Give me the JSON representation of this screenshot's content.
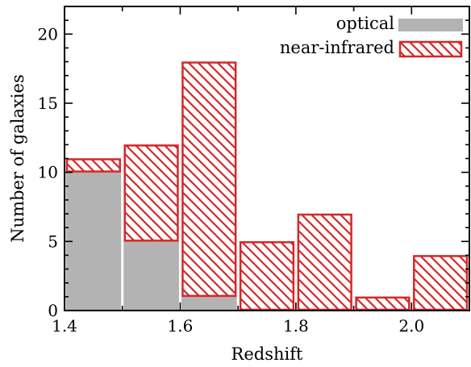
{
  "chart_data": {
    "type": "bar",
    "stacked": "overlaid",
    "xlabel": "Redshift",
    "ylabel": "Number of galaxies",
    "xlim": [
      1.4,
      2.1
    ],
    "ylim": [
      0,
      22
    ],
    "bin_width": 0.1,
    "x_ticks": [
      1.4,
      1.6,
      1.8,
      2.0
    ],
    "x_minor_ticks": [
      1.5,
      1.7,
      1.9,
      2.1
    ],
    "y_ticks": [
      0,
      5,
      10,
      15,
      20
    ],
    "x_tick_labels": [
      "1.4",
      "1.6",
      "1.8",
      "2.0"
    ],
    "y_tick_labels": [
      "0",
      "5",
      "10",
      "15",
      "20"
    ],
    "bins": [
      {
        "start": 1.4,
        "end": 1.5
      },
      {
        "start": 1.5,
        "end": 1.6
      },
      {
        "start": 1.6,
        "end": 1.7
      },
      {
        "start": 1.7,
        "end": 1.8
      },
      {
        "start": 1.8,
        "end": 1.9
      },
      {
        "start": 1.9,
        "end": 2.0
      },
      {
        "start": 2.0,
        "end": 2.1
      }
    ],
    "series": [
      {
        "name": "optical",
        "style": "solid",
        "color": "#b3b3b3",
        "values": [
          10,
          5,
          1,
          0,
          0,
          0,
          0
        ]
      },
      {
        "name": "near-infrared",
        "style": "hatched",
        "color": "#d62728",
        "values": [
          11,
          12,
          18,
          5,
          7,
          1,
          4
        ]
      }
    ],
    "legend": {
      "placement": "top-right"
    },
    "grid": false
  }
}
